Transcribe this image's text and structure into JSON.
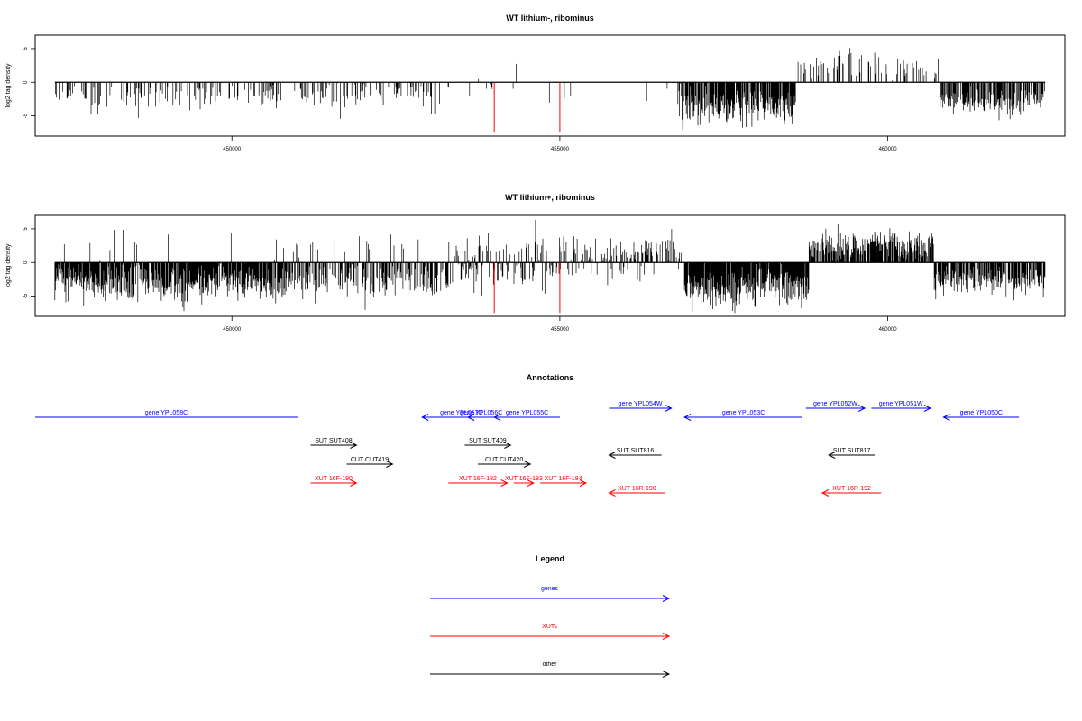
{
  "colors": {
    "genes": "#0000ff",
    "xuts": "#ff0000",
    "other": "#000000",
    "marker": "#ff0000",
    "bar": "#000000"
  },
  "chart_data": [
    {
      "type": "bar",
      "title": "WT lithium-, ribominus",
      "ylabel": "log2 tag density",
      "xlim": [
        447000,
        462700
      ],
      "ylim": [
        -8,
        7
      ],
      "xticks": [
        450000,
        455000,
        460000
      ],
      "xtick_labels": [
        "450000",
        "455000",
        "460000"
      ],
      "yticks": [
        -5,
        0,
        5
      ],
      "ytick_labels": [
        "-5",
        "0",
        "5"
      ],
      "xrange": [
        447300,
        462400
      ],
      "marker_positions": [
        454000,
        455000
      ],
      "marker_value": -7.5,
      "segments": [
        {
          "start": 447300,
          "end": 453200,
          "density": 0.28,
          "mean": -2.1,
          "sd": 1.0,
          "up": 0.0
        },
        {
          "start": 453200,
          "end": 454900,
          "density": 0.06,
          "mean": -1.2,
          "sd": 0.8,
          "up": 0.35
        },
        {
          "start": 454900,
          "end": 456800,
          "density": 0.02,
          "mean": -1.5,
          "sd": 0.9,
          "up": 0.3
        },
        {
          "start": 456800,
          "end": 458600,
          "density": 0.85,
          "mean": -3.6,
          "sd": 1.3,
          "up": 0.0
        },
        {
          "start": 458600,
          "end": 460800,
          "density": 0.3,
          "mean": 2.3,
          "sd": 1.1,
          "up": 1.0
        },
        {
          "start": 460800,
          "end": 462400,
          "density": 0.65,
          "mean": -3.0,
          "sd": 1.1,
          "up": 0.0
        }
      ]
    },
    {
      "type": "bar",
      "title": "WT lithium+, ribominus",
      "ylabel": "log2 tag density",
      "xlim": [
        447000,
        462700
      ],
      "ylim": [
        -8,
        7
      ],
      "xticks": [
        450000,
        455000,
        460000
      ],
      "xtick_labels": [
        "450000",
        "455000",
        "460000"
      ],
      "yticks": [
        -5,
        0,
        5
      ],
      "ytick_labels": [
        "-5",
        "0",
        "5"
      ],
      "xrange": [
        447300,
        462400
      ],
      "marker_positions": [
        454000,
        455000
      ],
      "marker_value": -7.5,
      "segments": [
        {
          "start": 447300,
          "end": 450800,
          "density": 0.95,
          "mean": -3.0,
          "sd": 1.4,
          "up": 0.02
        },
        {
          "start": 450800,
          "end": 453300,
          "density": 0.55,
          "mean": -2.8,
          "sd": 1.3,
          "up": 0.1
        },
        {
          "start": 453300,
          "end": 455000,
          "density": 0.55,
          "mean": -1.2,
          "sd": 1.6,
          "up": 0.5
        },
        {
          "start": 455000,
          "end": 456900,
          "density": 0.45,
          "mean": 1.6,
          "sd": 1.1,
          "up": 0.75
        },
        {
          "start": 456900,
          "end": 458800,
          "density": 0.95,
          "mean": -3.8,
          "sd": 1.4,
          "up": 0.0
        },
        {
          "start": 458800,
          "end": 460700,
          "density": 0.85,
          "mean": 2.6,
          "sd": 1.3,
          "up": 1.0
        },
        {
          "start": 460700,
          "end": 462400,
          "density": 0.75,
          "mean": -3.0,
          "sd": 1.1,
          "up": 0.0
        }
      ]
    },
    {
      "type": "table",
      "title": "Annotations",
      "features": [
        {
          "label": "gene YPL058C",
          "class": "gene",
          "start": 447000,
          "end": 451000,
          "strand": "-",
          "row": 1,
          "arrow": false
        },
        {
          "label": "gene YPL057C",
          "class": "gene",
          "start": 452900,
          "end": 454100,
          "strand": "-",
          "row": 1
        },
        {
          "label": "gene YPL056C",
          "class": "gene",
          "start": 453600,
          "end": 454000,
          "strand": "-",
          "row": 1
        },
        {
          "label": "gene YPL055C",
          "class": "gene",
          "start": 454000,
          "end": 455000,
          "strand": "-",
          "row": 1
        },
        {
          "label": "gene YPL054W",
          "class": "gene",
          "start": 455750,
          "end": 456700,
          "strand": "+",
          "row": 0
        },
        {
          "label": "gene YPL053C",
          "class": "gene",
          "start": 456900,
          "end": 458700,
          "strand": "-",
          "row": 1
        },
        {
          "label": "gene YPL052W",
          "class": "gene",
          "start": 458750,
          "end": 459650,
          "strand": "+",
          "row": 0
        },
        {
          "label": "gene YPL051W",
          "class": "gene",
          "start": 459750,
          "end": 460650,
          "strand": "+",
          "row": 0
        },
        {
          "label": "gene YPL050C",
          "class": "gene",
          "start": 460850,
          "end": 462000,
          "strand": "-",
          "row": 1
        },
        {
          "label": "SUT SUT408",
          "class": "other",
          "start": 451200,
          "end": 451900,
          "strand": "+",
          "row": 2
        },
        {
          "label": "SUT SUT409",
          "class": "other",
          "start": 453550,
          "end": 454250,
          "strand": "+",
          "row": 2
        },
        {
          "label": "SUT SUT816",
          "class": "other",
          "start": 455750,
          "end": 456550,
          "strand": "-",
          "row": 3
        },
        {
          "label": "SUT SUT817",
          "class": "other",
          "start": 459100,
          "end": 459800,
          "strand": "-",
          "row": 3
        },
        {
          "label": "CUT CUT419",
          "class": "other",
          "start": 451750,
          "end": 452450,
          "strand": "+",
          "row": 4
        },
        {
          "label": "CUT CUT420",
          "class": "other",
          "start": 453750,
          "end": 454550,
          "strand": "+",
          "row": 4
        },
        {
          "label": "XUT 16F-180",
          "class": "xut",
          "start": 451200,
          "end": 451900,
          "strand": "+",
          "row": 5
        },
        {
          "label": "XUT 16F-182",
          "class": "xut",
          "start": 453300,
          "end": 454200,
          "strand": "+",
          "row": 5
        },
        {
          "label": "XUT 16F-183",
          "class": "xut",
          "start": 454300,
          "end": 454600,
          "strand": "+",
          "row": 5
        },
        {
          "label": "XUT 16F-184",
          "class": "xut",
          "start": 454700,
          "end": 455400,
          "strand": "+",
          "row": 5
        },
        {
          "label": "XUT 16R-190",
          "class": "xut",
          "start": 455750,
          "end": 456600,
          "strand": "-",
          "row": 6
        },
        {
          "label": "XUT 16R-192",
          "class": "xut",
          "start": 459000,
          "end": 459900,
          "strand": "-",
          "row": 6
        }
      ]
    }
  ],
  "legend": {
    "title": "Legend",
    "items": [
      {
        "label": "genes",
        "class": "gene"
      },
      {
        "label": "XUTs",
        "class": "xut"
      },
      {
        "label": "other",
        "class": "other"
      }
    ]
  }
}
